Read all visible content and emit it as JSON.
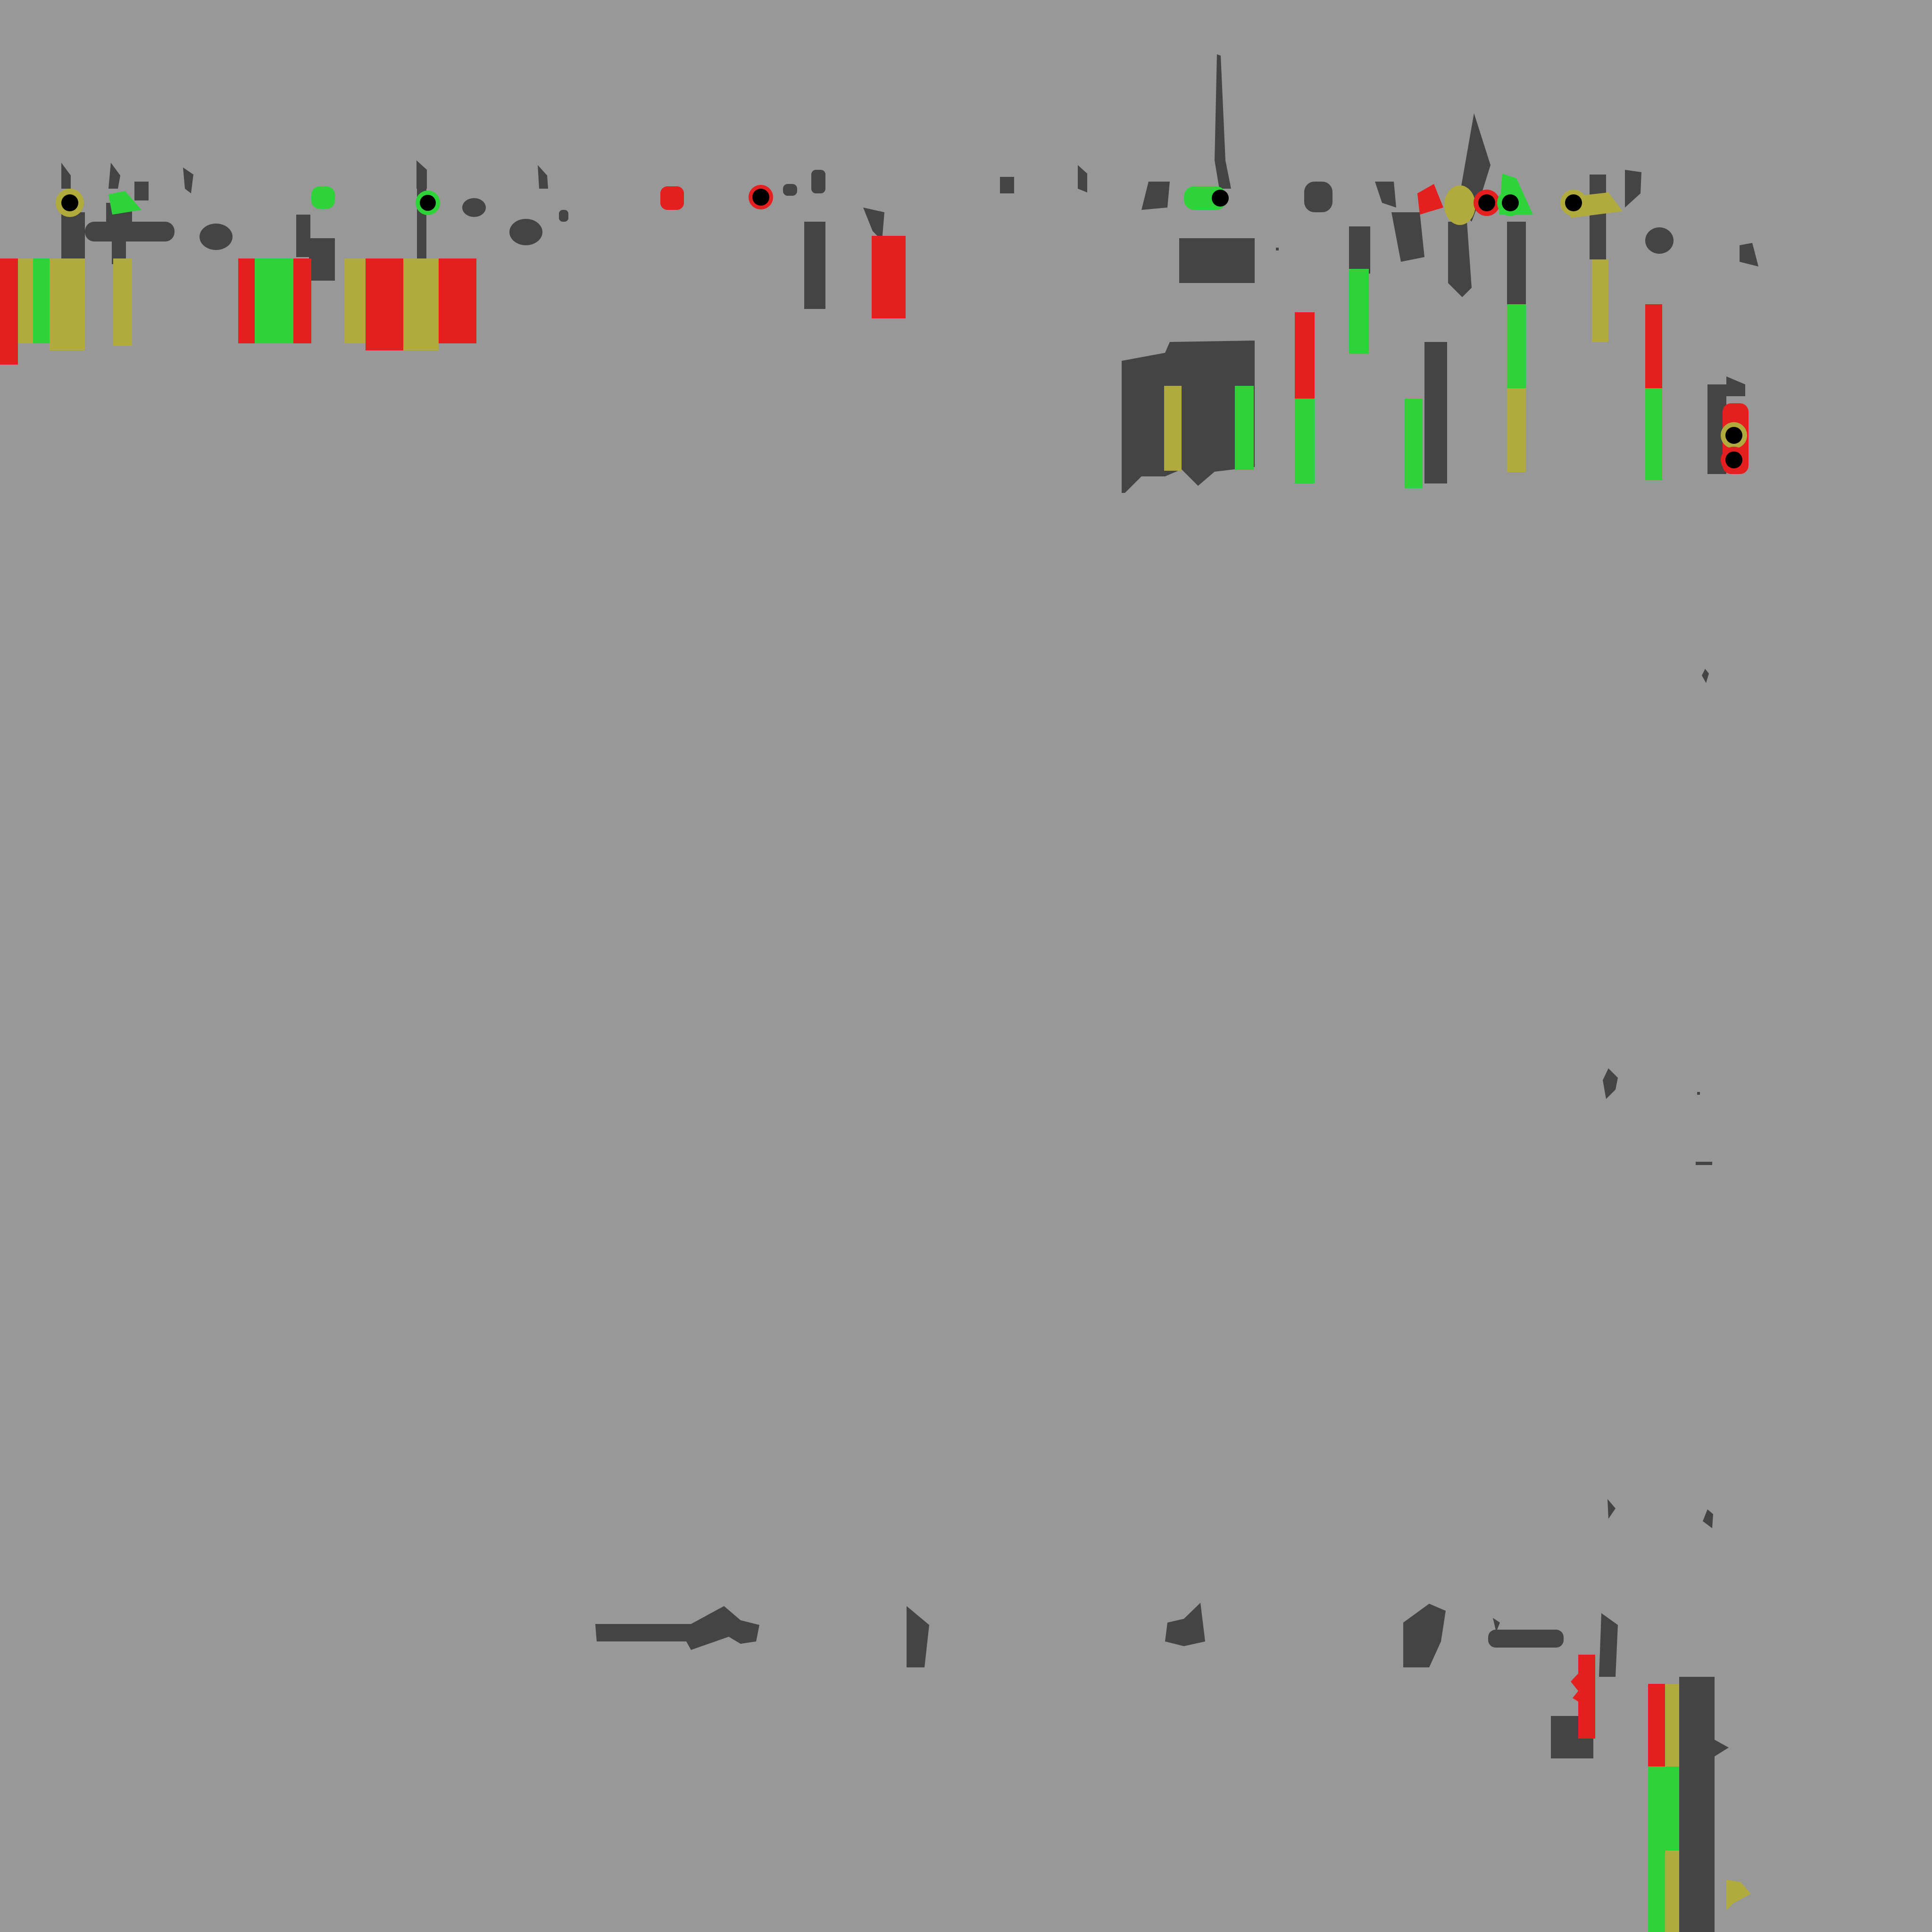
{
  "palette": {
    "background": "#989898",
    "dark": "#444444",
    "red": "#e41f1f",
    "green": "#2ed33a",
    "olive": "#b1ab3d",
    "black": "#000000"
  }
}
